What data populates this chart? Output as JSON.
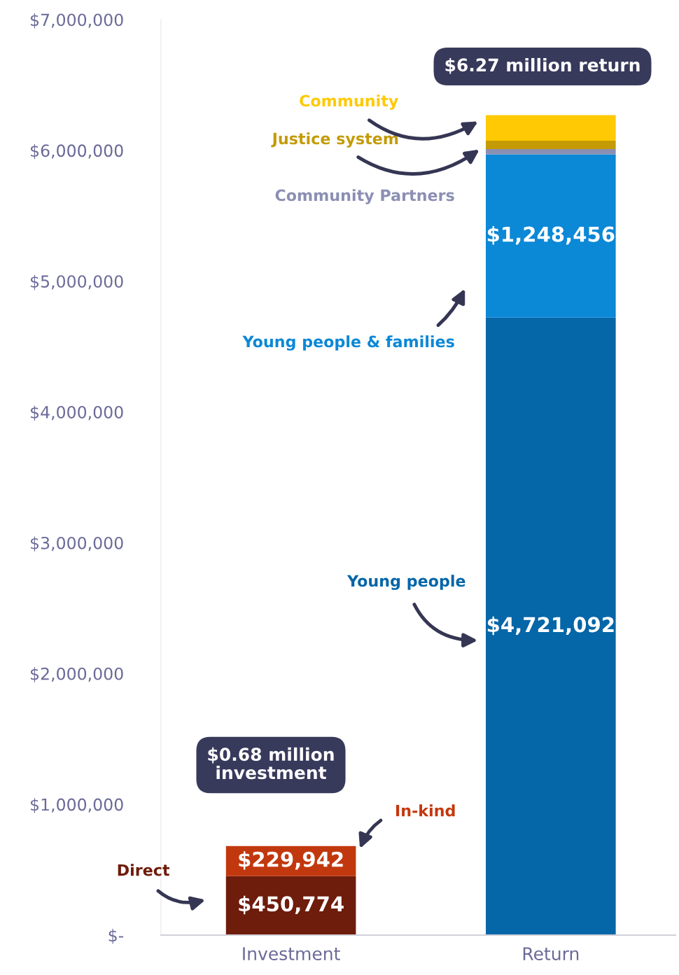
{
  "chart_data": {
    "type": "bar",
    "stacked": true,
    "categories": [
      "Investment",
      "Return"
    ],
    "series": [
      {
        "name": "Direct",
        "color": "#6e1c0b",
        "values": [
          450774,
          null
        ],
        "value_labels": [
          "$450,774",
          null
        ]
      },
      {
        "name": "In-kind",
        "color": "#c2380e",
        "values": [
          229942,
          null
        ],
        "value_labels": [
          "$229,942",
          null
        ]
      },
      {
        "name": "Young people",
        "color": "#0566a8",
        "values": [
          null,
          4721092
        ],
        "value_labels": [
          null,
          "$4,721,092"
        ]
      },
      {
        "name": "Young people & families",
        "color": "#0b88d6",
        "values": [
          null,
          1248456
        ],
        "value_labels": [
          null,
          "$1,248,456"
        ]
      },
      {
        "name": "Community Partners",
        "color": "#8b8fb3",
        "values": [
          null,
          40000
        ]
      },
      {
        "name": "Justice system",
        "color": "#c49b05",
        "values": [
          null,
          65000
        ]
      },
      {
        "name": "Community",
        "color": "#ffc904",
        "values": [
          null,
          195000
        ]
      }
    ],
    "ylim": [
      0,
      7000000
    ],
    "yticks": [
      {
        "value": 0,
        "label": "$-"
      },
      {
        "value": 1000000,
        "label": "$1,000,000"
      },
      {
        "value": 2000000,
        "label": "$2,000,000"
      },
      {
        "value": 3000000,
        "label": "$3,000,000"
      },
      {
        "value": 4000000,
        "label": "$4,000,000"
      },
      {
        "value": 5000000,
        "label": "$5,000,000"
      },
      {
        "value": 6000000,
        "label": "$6,000,000"
      },
      {
        "value": 7000000,
        "label": "$7,000,000"
      }
    ],
    "annotations": [
      "$6.27 million return",
      "$0.68 million\ninvestment"
    ],
    "grid": false,
    "legend": false
  }
}
